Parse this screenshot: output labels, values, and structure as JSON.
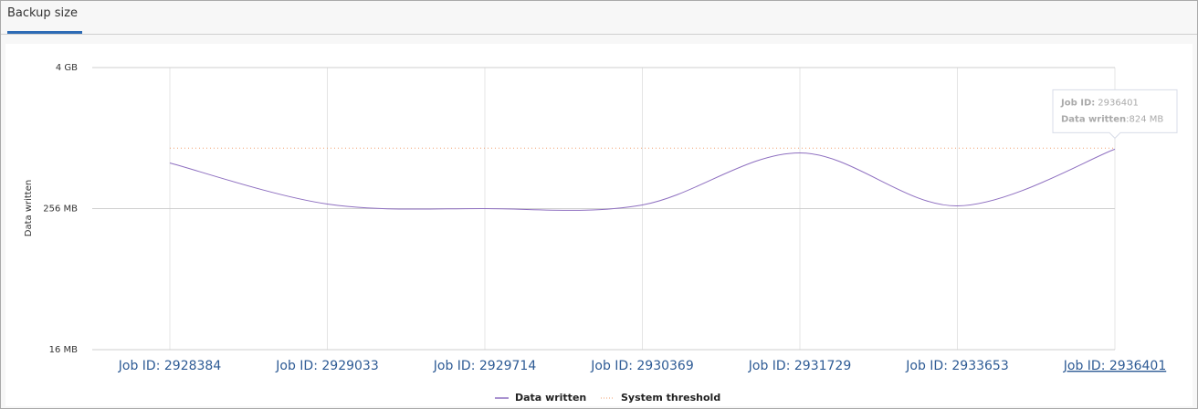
{
  "tab": "Backup size",
  "chart_data": {
    "type": "line",
    "y_label": "Data written",
    "log_scale": true,
    "grid": true,
    "categories": [
      "Job ID: 2928384",
      "Job ID: 2929033",
      "Job ID: 2929714",
      "Job ID: 2930369",
      "Job ID: 2931729",
      "Job ID: 2933653",
      "Job ID: 2936401"
    ],
    "series": [
      {
        "name": "Data written",
        "color": "#8e6fc0",
        "values": [
          628,
          280,
          256,
          275,
          765,
          270,
          824
        ]
      }
    ],
    "threshold": {
      "name": "System threshold",
      "color": "#f0a070",
      "value": 840
    },
    "ylim": [
      16,
      4096
    ],
    "yticks": [
      {
        "value": 16,
        "label": "16 MB"
      },
      {
        "value": 256,
        "label": "256 MB"
      },
      {
        "value": 4096,
        "label": "4 GB"
      }
    ],
    "tooltip": {
      "job_key": "Job ID:",
      "job": "2936401",
      "value_key": "Data written",
      "value_text": ":824 MB"
    }
  }
}
